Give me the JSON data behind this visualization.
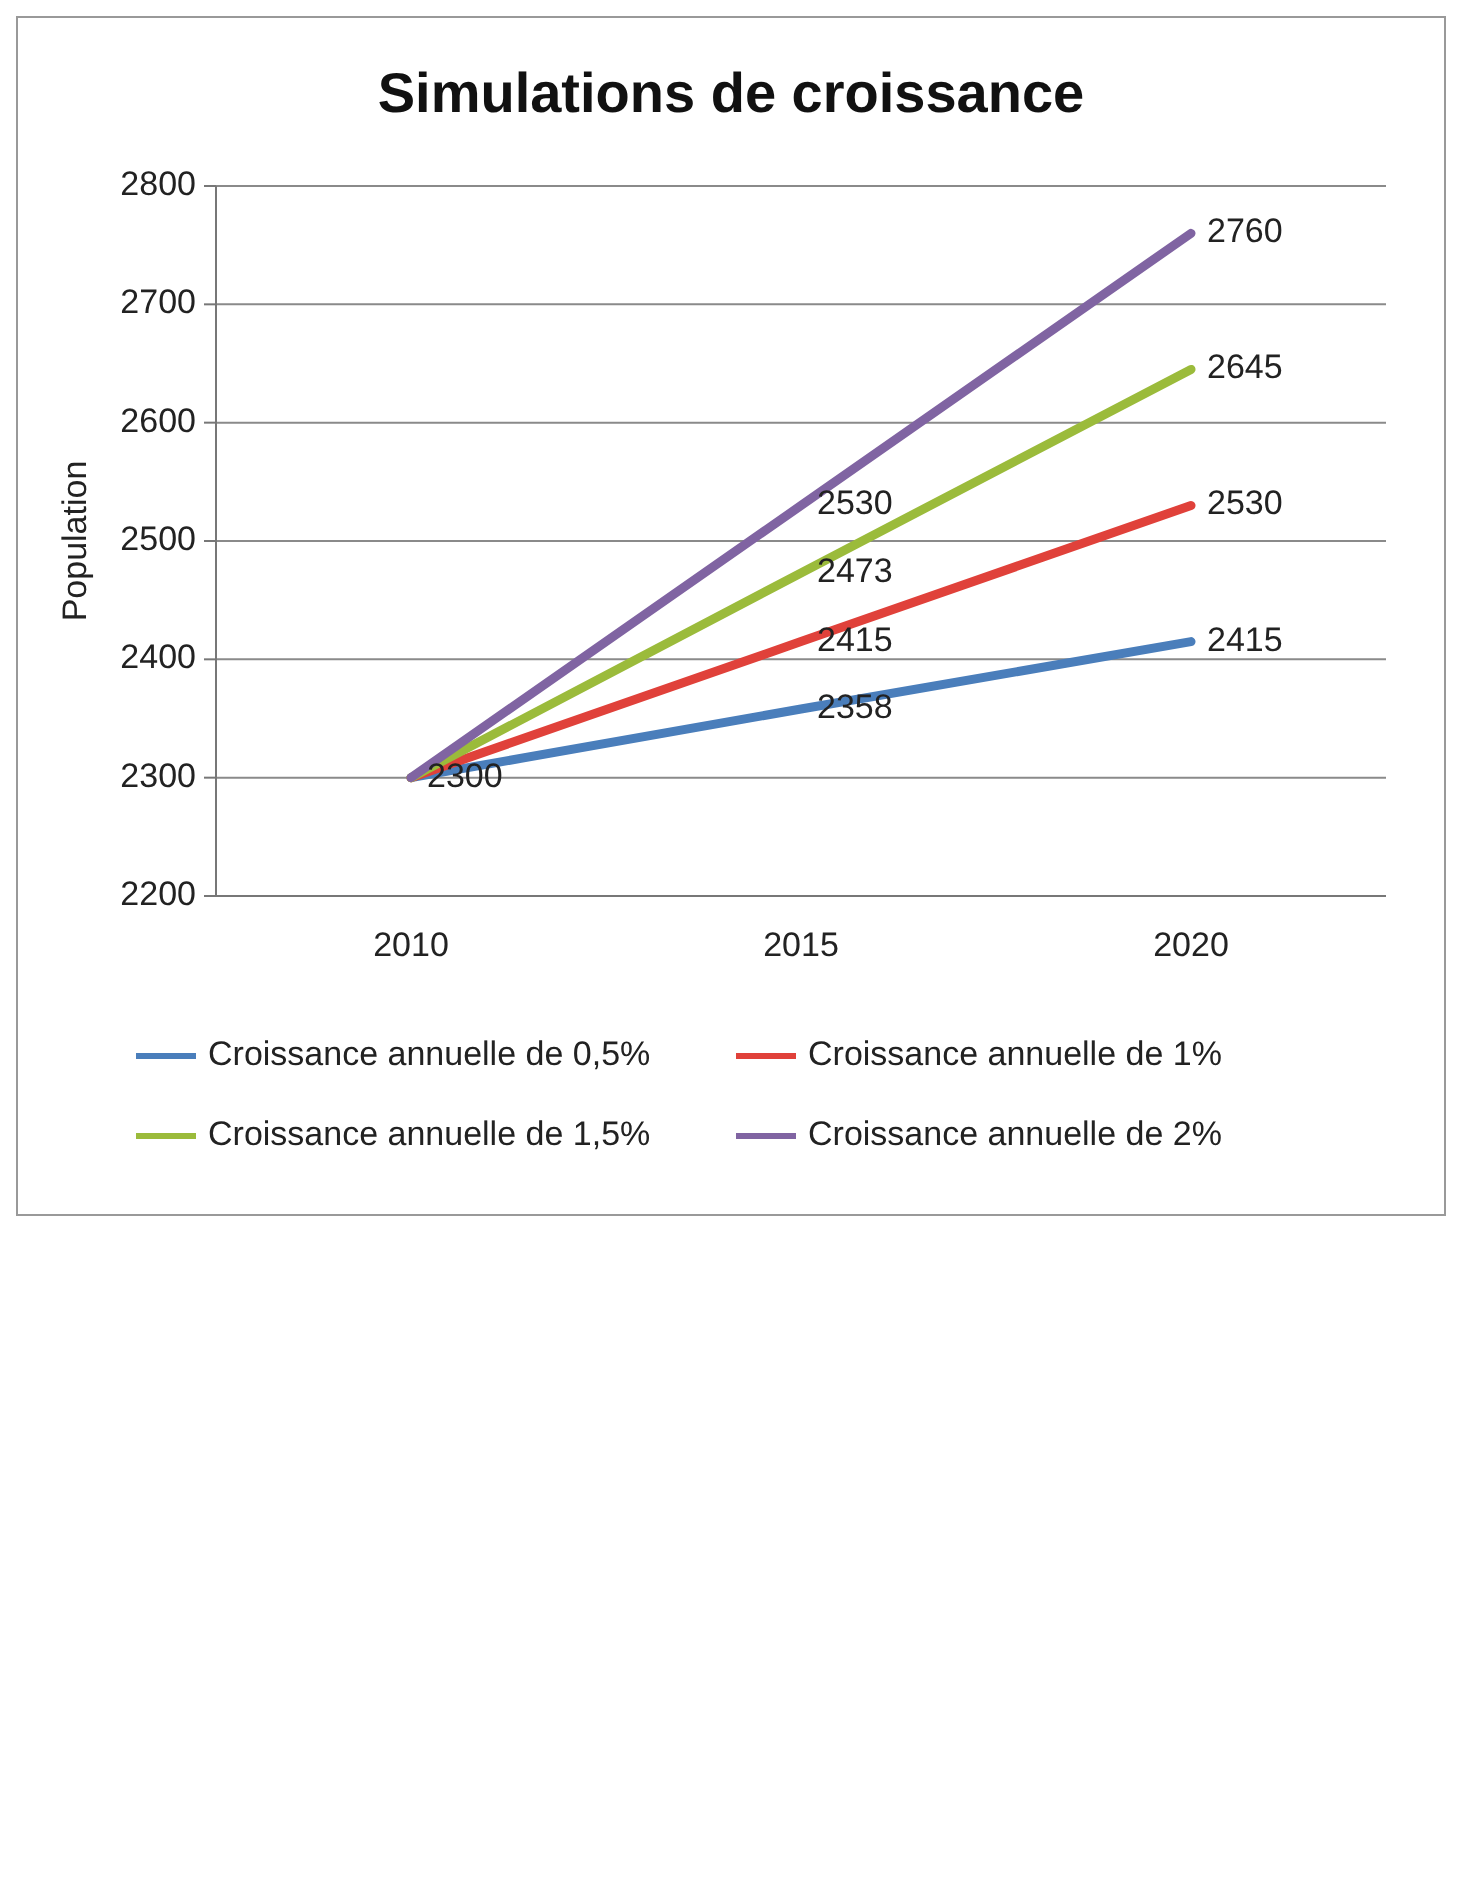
{
  "chart_data": {
    "type": "line",
    "title": "Simulations de croissance",
    "ylabel": "Population",
    "categories": [
      "2010",
      "2015",
      "2020"
    ],
    "series": [
      {
        "name": "Croissance annuelle de 0,5%",
        "color": "#4a7ebb",
        "values": [
          2300,
          2358,
          2415
        ],
        "value_labels": [
          "2300",
          "2358",
          "2415"
        ]
      },
      {
        "name": "Croissance annuelle de 1%",
        "color": "#e0413a",
        "values": [
          2300,
          2415,
          2530
        ],
        "value_labels": [
          null,
          "2415",
          "2530"
        ]
      },
      {
        "name": "Croissance annuelle de 1,5%",
        "color": "#9bbb3b",
        "values": [
          2300,
          2473,
          2645
        ],
        "value_labels": [
          null,
          "2473",
          "2645"
        ]
      },
      {
        "name": "Croissance annuelle de 2%",
        "color": "#8064a2",
        "values": [
          2300,
          2530,
          2760
        ],
        "value_labels": [
          null,
          "2530",
          "2760"
        ]
      }
    ],
    "ylim": [
      2200,
      2800
    ],
    "yticks": [
      2200,
      2300,
      2400,
      2500,
      2600,
      2700,
      2800
    ],
    "grid": "y",
    "legend": "bottom",
    "marker": "none",
    "line_style": "solid"
  }
}
